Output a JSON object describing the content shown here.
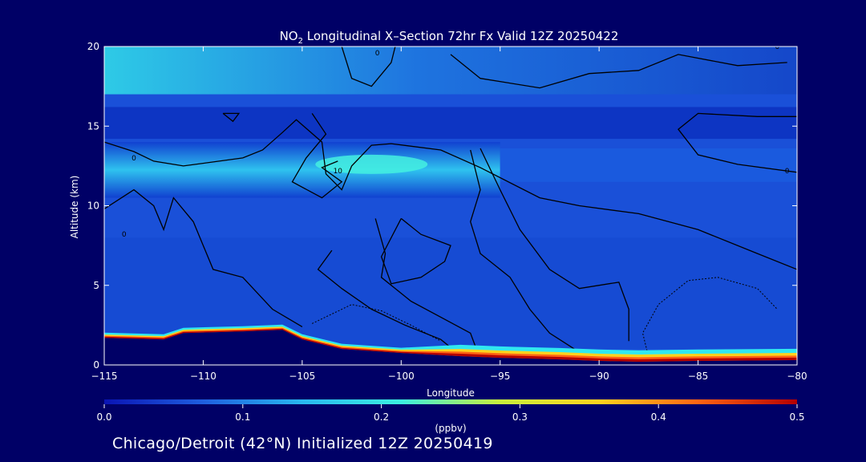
{
  "chart_data": {
    "type": "heatmap",
    "title_main": "NO",
    "title_sub": "2",
    "title_rest": " Longitudinal X–Section 72hr  Fx Valid 12Z 20250422",
    "xlabel": "Longitude",
    "ylabel": "Altitude (km)",
    "xlim": [
      -115,
      -80
    ],
    "ylim": [
      0,
      20
    ],
    "x_ticks": [
      -115,
      -110,
      -105,
      -100,
      -95,
      -90,
      -85,
      -80
    ],
    "x_tick_labels": [
      "−115",
      "−110",
      "−105",
      "−100",
      "−95",
      "−90",
      "−85",
      "−80"
    ],
    "y_ticks": [
      0,
      5,
      10,
      15,
      20
    ],
    "y_tick_labels": [
      "0",
      "5",
      "10",
      "15",
      "20"
    ],
    "colorbar": {
      "label": "(ppbv)",
      "range": [
        0.0,
        0.5
      ],
      "ticks": [
        0.0,
        0.1,
        0.2,
        0.3,
        0.4,
        0.5
      ],
      "tick_labels": [
        "0.0",
        "0.1",
        "0.2",
        "0.3",
        "0.4",
        "0.5"
      ],
      "colors": [
        "#0a14b4",
        "#1f5fe0",
        "#29b8f0",
        "#3cf0e0",
        "#c8f03c",
        "#ffd21e",
        "#ff6414",
        "#b40000"
      ]
    },
    "terrain": {
      "lon": [
        -115,
        -112,
        -111,
        -108,
        -106,
        -105,
        -103,
        -100,
        -97,
        -95,
        -92,
        -90,
        -88,
        -85,
        -80
      ],
      "alt": [
        1.7,
        1.6,
        2.0,
        2.1,
        2.2,
        1.6,
        1.0,
        0.75,
        0.55,
        0.45,
        0.35,
        0.25,
        0.2,
        0.25,
        0.3
      ]
    },
    "bands": [
      {
        "alt_low": 10.5,
        "alt_high": 14.0,
        "value": 0.17,
        "note": "upper layer"
      },
      {
        "alt_low": 17.0,
        "alt_high": 20.0,
        "value": 0.15,
        "note": "top layer west"
      }
    ],
    "contour_labels": [
      {
        "lon": -101.2,
        "alt": 19.6,
        "text": "0"
      },
      {
        "lon": -103.2,
        "alt": 12.2,
        "text": "10"
      },
      {
        "lon": -114.0,
        "alt": 8.2,
        "text": "0"
      },
      {
        "lon": -113.5,
        "alt": 13.0,
        "text": "0"
      },
      {
        "lon": -80.5,
        "alt": 12.2,
        "text": "0"
      },
      {
        "lon": -81.0,
        "alt": 20.0,
        "text": "0"
      }
    ]
  },
  "footer": {
    "initialized_text": "Chicago/Detroit (42°N) Initialized 12Z 20250419"
  }
}
